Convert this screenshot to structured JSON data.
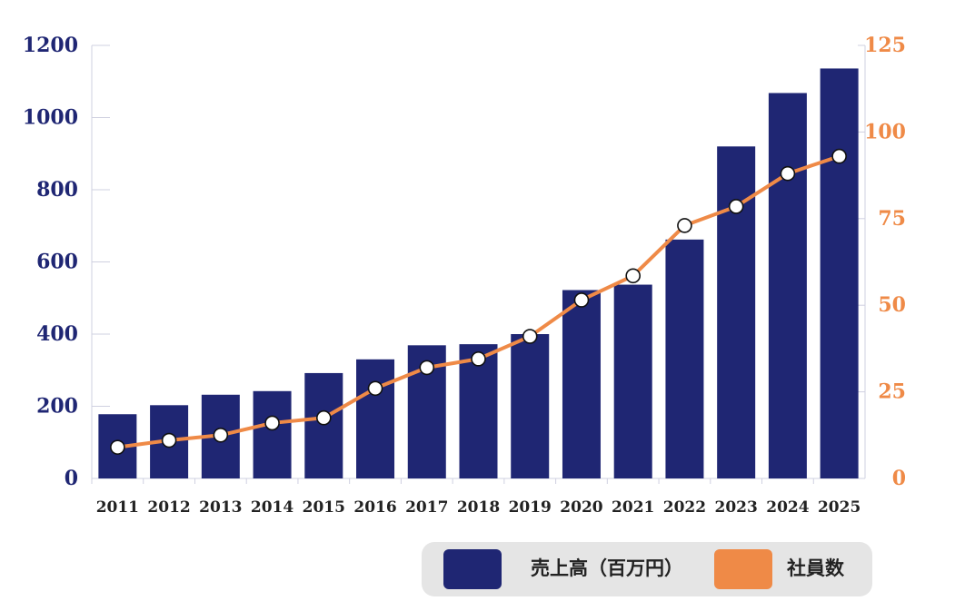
{
  "chart_data": {
    "type": "bar+line",
    "categories": [
      "2011",
      "2012",
      "2013",
      "2014",
      "2015",
      "2016",
      "2017",
      "2018",
      "2019",
      "2020",
      "2021",
      "2022",
      "2023",
      "2024",
      "2025"
    ],
    "series": [
      {
        "name": "売上高（百万円）",
        "type": "bar",
        "axis": "left",
        "color": "#1f2673",
        "values": [
          178,
          203,
          232,
          242,
          292,
          330,
          369,
          372,
          400,
          522,
          537,
          662,
          920,
          1068,
          1136
        ]
      },
      {
        "name": "社員数",
        "type": "line",
        "axis": "right",
        "color": "#ef8a47",
        "values": [
          9,
          11,
          12.5,
          16,
          17.5,
          26,
          32,
          34.5,
          41,
          51.5,
          58.5,
          73,
          78.5,
          88,
          93
        ]
      }
    ],
    "y_left": {
      "ylim": [
        0,
        1200
      ],
      "ticks": [
        "0",
        "200",
        "400",
        "600",
        "800",
        "1000",
        "1200"
      ],
      "color": "#1f2673"
    },
    "y_right": {
      "ylim": [
        0,
        125
      ],
      "ticks": [
        "0",
        "25",
        "50",
        "75",
        "100",
        "125"
      ],
      "color": "#ef8a47"
    },
    "grid": false,
    "legend_position": "bottom-right",
    "title": "",
    "xlabel": "",
    "ylabel": ""
  }
}
